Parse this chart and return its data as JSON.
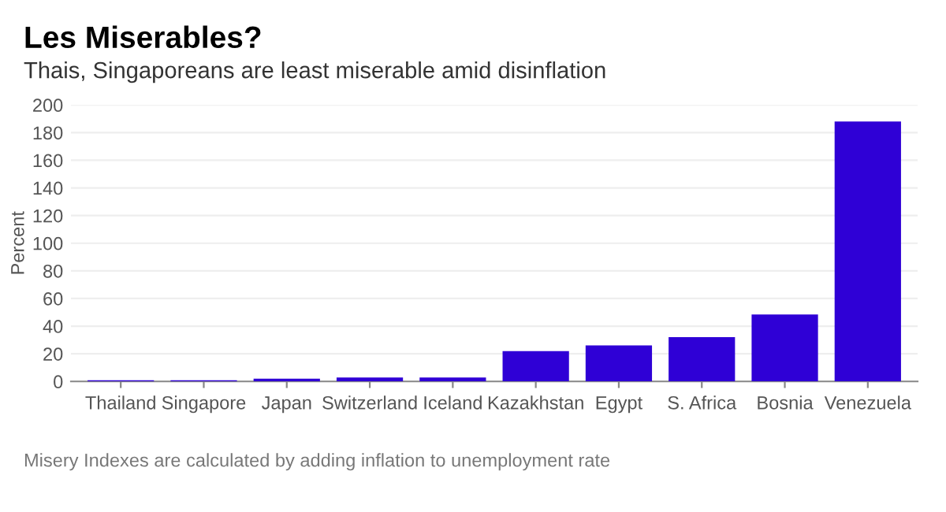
{
  "chart_data": {
    "type": "bar",
    "title": "Les Miserables?",
    "subtitle": "Thais, Singaporeans are least miserable amid disinflation",
    "ylabel": "Percent",
    "categories": [
      "Thailand",
      "Singapore",
      "Japan",
      "Switzerland",
      "Iceland",
      "Kazakhstan",
      "Egypt",
      "S. Africa",
      "Bosnia",
      "Venezuela"
    ],
    "values": [
      0.8,
      0.8,
      2,
      2.8,
      2.8,
      22,
      26,
      32,
      48.5,
      188
    ],
    "color": "#2f00d6",
    "ylim": [
      0,
      200
    ],
    "yticks": [
      0,
      20,
      40,
      60,
      80,
      100,
      120,
      140,
      160,
      180,
      200
    ],
    "grid": "y",
    "annotations": [
      "Misery Indexes are calculated by adding inflation to unemployment rate"
    ]
  }
}
